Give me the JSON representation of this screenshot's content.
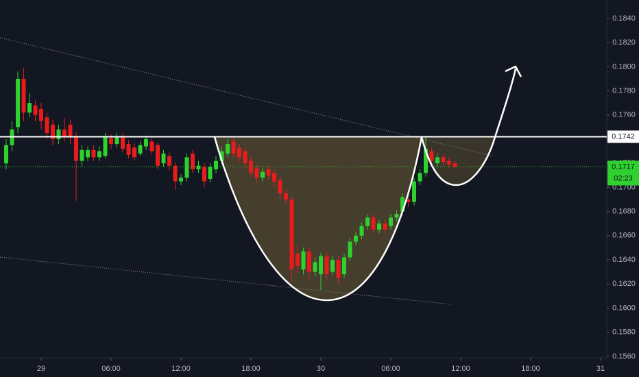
{
  "chart_data": {
    "type": "candlestick",
    "x": [
      -3,
      -2.5,
      -2,
      -1.5,
      -1,
      -0.5,
      0,
      0.5,
      1,
      1.5,
      2,
      2.5,
      3,
      3.5,
      4,
      4.5,
      5,
      5.5,
      6,
      6.5,
      7,
      7.5,
      8,
      8.5,
      9,
      9.5,
      10,
      10.5,
      11,
      11.5,
      12,
      12.5,
      13,
      13.5,
      14,
      14.5,
      15,
      15.5,
      16,
      16.5,
      17,
      17.5,
      18,
      18.5,
      19,
      19.5,
      20,
      20.5,
      21,
      21.5,
      22,
      22.5,
      23,
      23.5,
      24,
      24.5,
      25,
      25.5,
      26,
      26.5,
      27,
      27.5,
      28,
      28.5,
      29,
      29.5,
      30,
      30.5,
      31,
      31.5,
      32,
      32.5,
      33,
      33.5,
      34,
      34.5,
      35,
      35.5
    ],
    "open": [
      0.172,
      0.1735,
      0.175,
      0.179,
      0.1762,
      0.1768,
      0.1765,
      0.1758,
      0.1752,
      0.174,
      0.1748,
      0.1752,
      0.1742,
      0.1722,
      0.1725,
      0.1731,
      0.1725,
      0.1726,
      0.1741,
      0.1736,
      0.1742,
      0.1736,
      0.1733,
      0.1728,
      0.1734,
      0.1738,
      0.1735,
      0.172,
      0.1726,
      0.1718,
      0.1705,
      0.1708,
      0.1728,
      0.1715,
      0.1717,
      0.1707,
      0.1715,
      0.1722,
      0.1728,
      0.1738,
      0.1733,
      0.173,
      0.1722,
      0.1716,
      0.1708,
      0.1715,
      0.1712,
      0.1706,
      0.1695,
      0.169,
      0.1645,
      0.1632,
      0.1647,
      0.163,
      0.1628,
      0.1643,
      0.163,
      0.164,
      0.1628,
      0.1642,
      0.1655,
      0.166,
      0.1668,
      0.1675,
      0.1665,
      0.167,
      0.1668,
      0.1675,
      0.168,
      0.169,
      0.1688,
      0.1705,
      0.1712,
      0.173,
      0.172,
      0.1725,
      0.1722,
      0.172
    ],
    "high": [
      0.174,
      0.1755,
      0.1796,
      0.1799,
      0.1778,
      0.1772,
      0.177,
      0.1762,
      0.1756,
      0.1752,
      0.1758,
      0.1756,
      0.1746,
      0.1735,
      0.1734,
      0.1735,
      0.1734,
      0.1745,
      0.1744,
      0.1745,
      0.1745,
      0.1739,
      0.1736,
      0.1738,
      0.1743,
      0.1741,
      0.1737,
      0.1731,
      0.1729,
      0.1721,
      0.1711,
      0.1728,
      0.1731,
      0.1722,
      0.172,
      0.172,
      0.1726,
      0.1734,
      0.174,
      0.1741,
      0.1736,
      0.1733,
      0.1726,
      0.1719,
      0.1716,
      0.1718,
      0.1715,
      0.1709,
      0.1698,
      0.1693,
      0.1652,
      0.165,
      0.165,
      0.1642,
      0.1646,
      0.1646,
      0.1643,
      0.1643,
      0.1645,
      0.1658,
      0.1663,
      0.1671,
      0.1678,
      0.1678,
      0.1673,
      0.1673,
      0.1678,
      0.1681,
      0.1695,
      0.1694,
      0.1708,
      0.1715,
      0.1742,
      0.1733,
      0.1728,
      0.1728,
      0.1725,
      0.1722
    ],
    "low": [
      0.1715,
      0.173,
      0.1745,
      0.1755,
      0.1758,
      0.1755,
      0.1748,
      0.174,
      0.1735,
      0.1736,
      0.1738,
      0.1736,
      0.1689,
      0.1718,
      0.1722,
      0.1722,
      0.1722,
      0.1724,
      0.1732,
      0.1733,
      0.1729,
      0.1724,
      0.1722,
      0.1726,
      0.1731,
      0.1727,
      0.1715,
      0.1717,
      0.1714,
      0.1698,
      0.1702,
      0.1705,
      0.1712,
      0.1712,
      0.17,
      0.1704,
      0.1712,
      0.1719,
      0.1725,
      0.1725,
      0.1721,
      0.1716,
      0.1709,
      0.1704,
      0.1705,
      0.1706,
      0.17,
      0.169,
      0.1686,
      0.1622,
      0.1628,
      0.1628,
      0.1624,
      0.1626,
      0.1615,
      0.1624,
      0.1627,
      0.162,
      0.1625,
      0.1639,
      0.1652,
      0.1657,
      0.1665,
      0.1662,
      0.1662,
      0.1662,
      0.1665,
      0.1672,
      0.1677,
      0.1684,
      0.1685,
      0.1702,
      0.1709,
      0.1718,
      0.1717,
      0.1718,
      0.1716,
      0.1715
    ],
    "close": [
      0.1735,
      0.1748,
      0.179,
      0.1762,
      0.177,
      0.176,
      0.1755,
      0.1745,
      0.174,
      0.1748,
      0.1742,
      0.1742,
      0.1722,
      0.1731,
      0.1731,
      0.1725,
      0.173,
      0.1742,
      0.1736,
      0.1742,
      0.1732,
      0.1727,
      0.1725,
      0.1735,
      0.174,
      0.173,
      0.1718,
      0.1728,
      0.1718,
      0.1705,
      0.1708,
      0.1725,
      0.1715,
      0.1718,
      0.1705,
      0.1717,
      0.1722,
      0.173,
      0.1736,
      0.1728,
      0.1725,
      0.172,
      0.1712,
      0.1708,
      0.1713,
      0.171,
      0.1705,
      0.1695,
      0.169,
      0.1632,
      0.1635,
      0.1647,
      0.163,
      0.1638,
      0.1643,
      0.1628,
      0.164,
      0.1625,
      0.1642,
      0.1655,
      0.166,
      0.1668,
      0.1675,
      0.1665,
      0.167,
      0.1665,
      0.1675,
      0.1678,
      0.1692,
      0.1688,
      0.1705,
      0.1712,
      0.1732,
      0.1722,
      0.1725,
      0.1721,
      0.1719,
      0.1717
    ],
    "up_color": "#2ed12e",
    "down_color": "#e81c1c",
    "xlim": [
      -3.53,
      48.53
    ],
    "xticks": [
      {
        "value": 0,
        "label": "29"
      },
      {
        "value": 6,
        "label": "06:00"
      },
      {
        "value": 12,
        "label": "12:00"
      },
      {
        "value": 18,
        "label": "18:00"
      },
      {
        "value": 24,
        "label": "30"
      },
      {
        "value": 30,
        "label": "06:00"
      },
      {
        "value": 36,
        "label": "12:00"
      },
      {
        "value": 42,
        "label": "18:00"
      },
      {
        "value": 48,
        "label": "31"
      }
    ],
    "ylim": [
      0.15588,
      0.18553
    ],
    "yticks": [
      {
        "value": 0.184,
        "label": "0.1840"
      },
      {
        "value": 0.182,
        "label": "0.1820"
      },
      {
        "value": 0.18,
        "label": "0.1800"
      },
      {
        "value": 0.178,
        "label": "0.1780"
      },
      {
        "value": 0.176,
        "label": "0.1760"
      },
      {
        "value": 0.174,
        "label": "0.1740"
      },
      {
        "value": 0.172,
        "label": "0.1720"
      },
      {
        "value": 0.17,
        "label": "0.1700"
      },
      {
        "value": 0.168,
        "label": "0.1680"
      },
      {
        "value": 0.166,
        "label": "0.1660"
      },
      {
        "value": 0.164,
        "label": "0.1640"
      },
      {
        "value": 0.162,
        "label": "0.1620"
      },
      {
        "value": 0.16,
        "label": "0.1600"
      },
      {
        "value": 0.158,
        "label": "0.1580"
      },
      {
        "value": 0.156,
        "label": "0.1560"
      }
    ],
    "resistance": 0.1742,
    "last_price": 0.1717,
    "countdown": "02:23"
  }
}
